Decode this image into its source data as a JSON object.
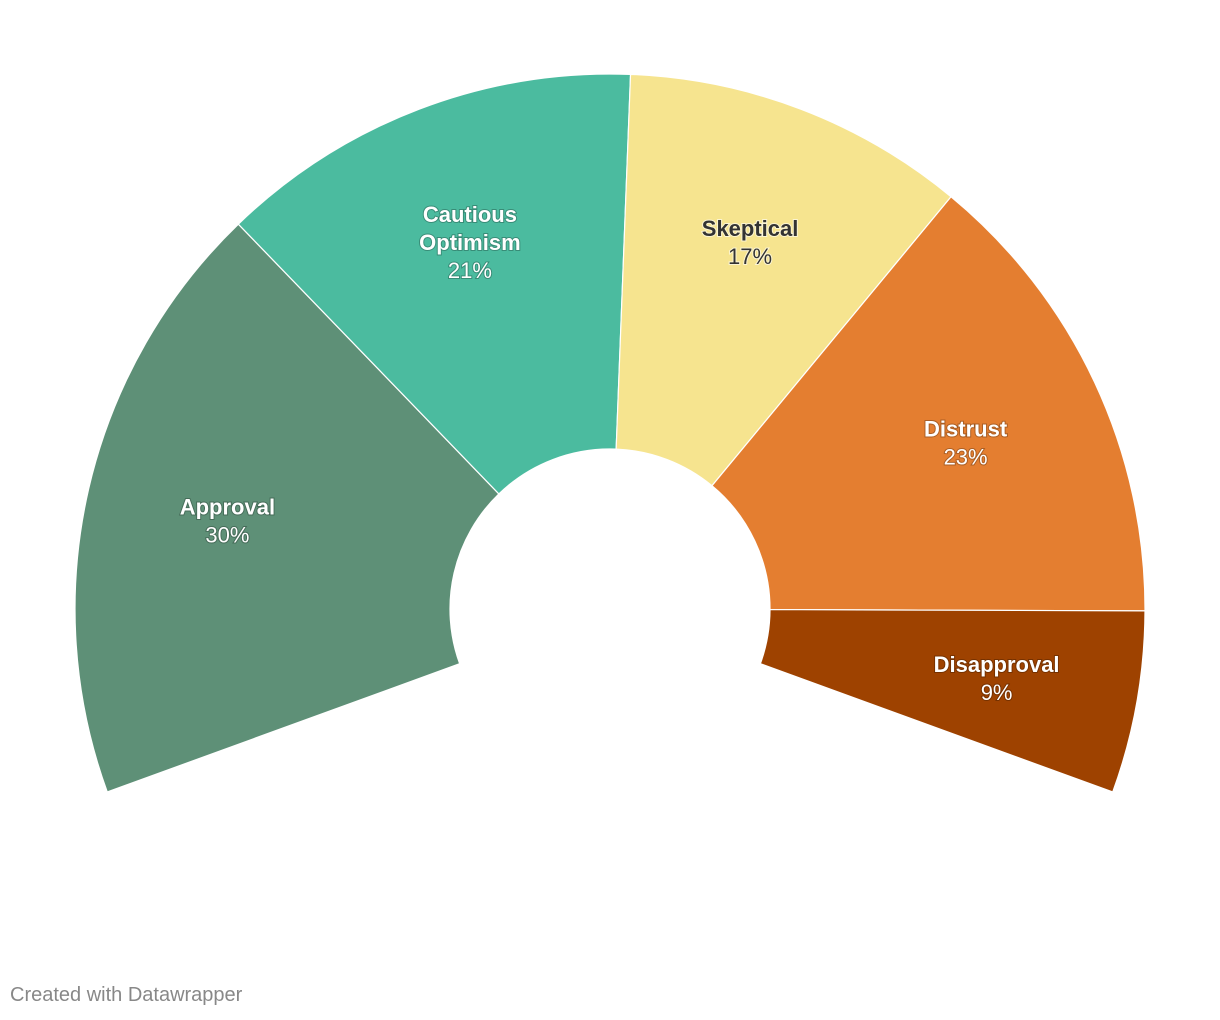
{
  "chart_data": {
    "type": "pie",
    "variant": "semi-donut",
    "title": "",
    "categories": [
      "Approval",
      "Cautious Optimism",
      "Skeptical",
      "Distrust",
      "Disapproval"
    ],
    "values": [
      30,
      21,
      17,
      23,
      9
    ],
    "labels": [
      "30%",
      "21%",
      "17%",
      "23%",
      "9%"
    ],
    "colors": [
      "#5e9077",
      "#4bbb9f",
      "#f6e48f",
      "#e47e30",
      "#9e4200"
    ],
    "label_colors": [
      "light",
      "light",
      "dark",
      "light",
      "light"
    ],
    "legend": "none"
  },
  "footer": {
    "credit": "Created with Datawrapper"
  }
}
